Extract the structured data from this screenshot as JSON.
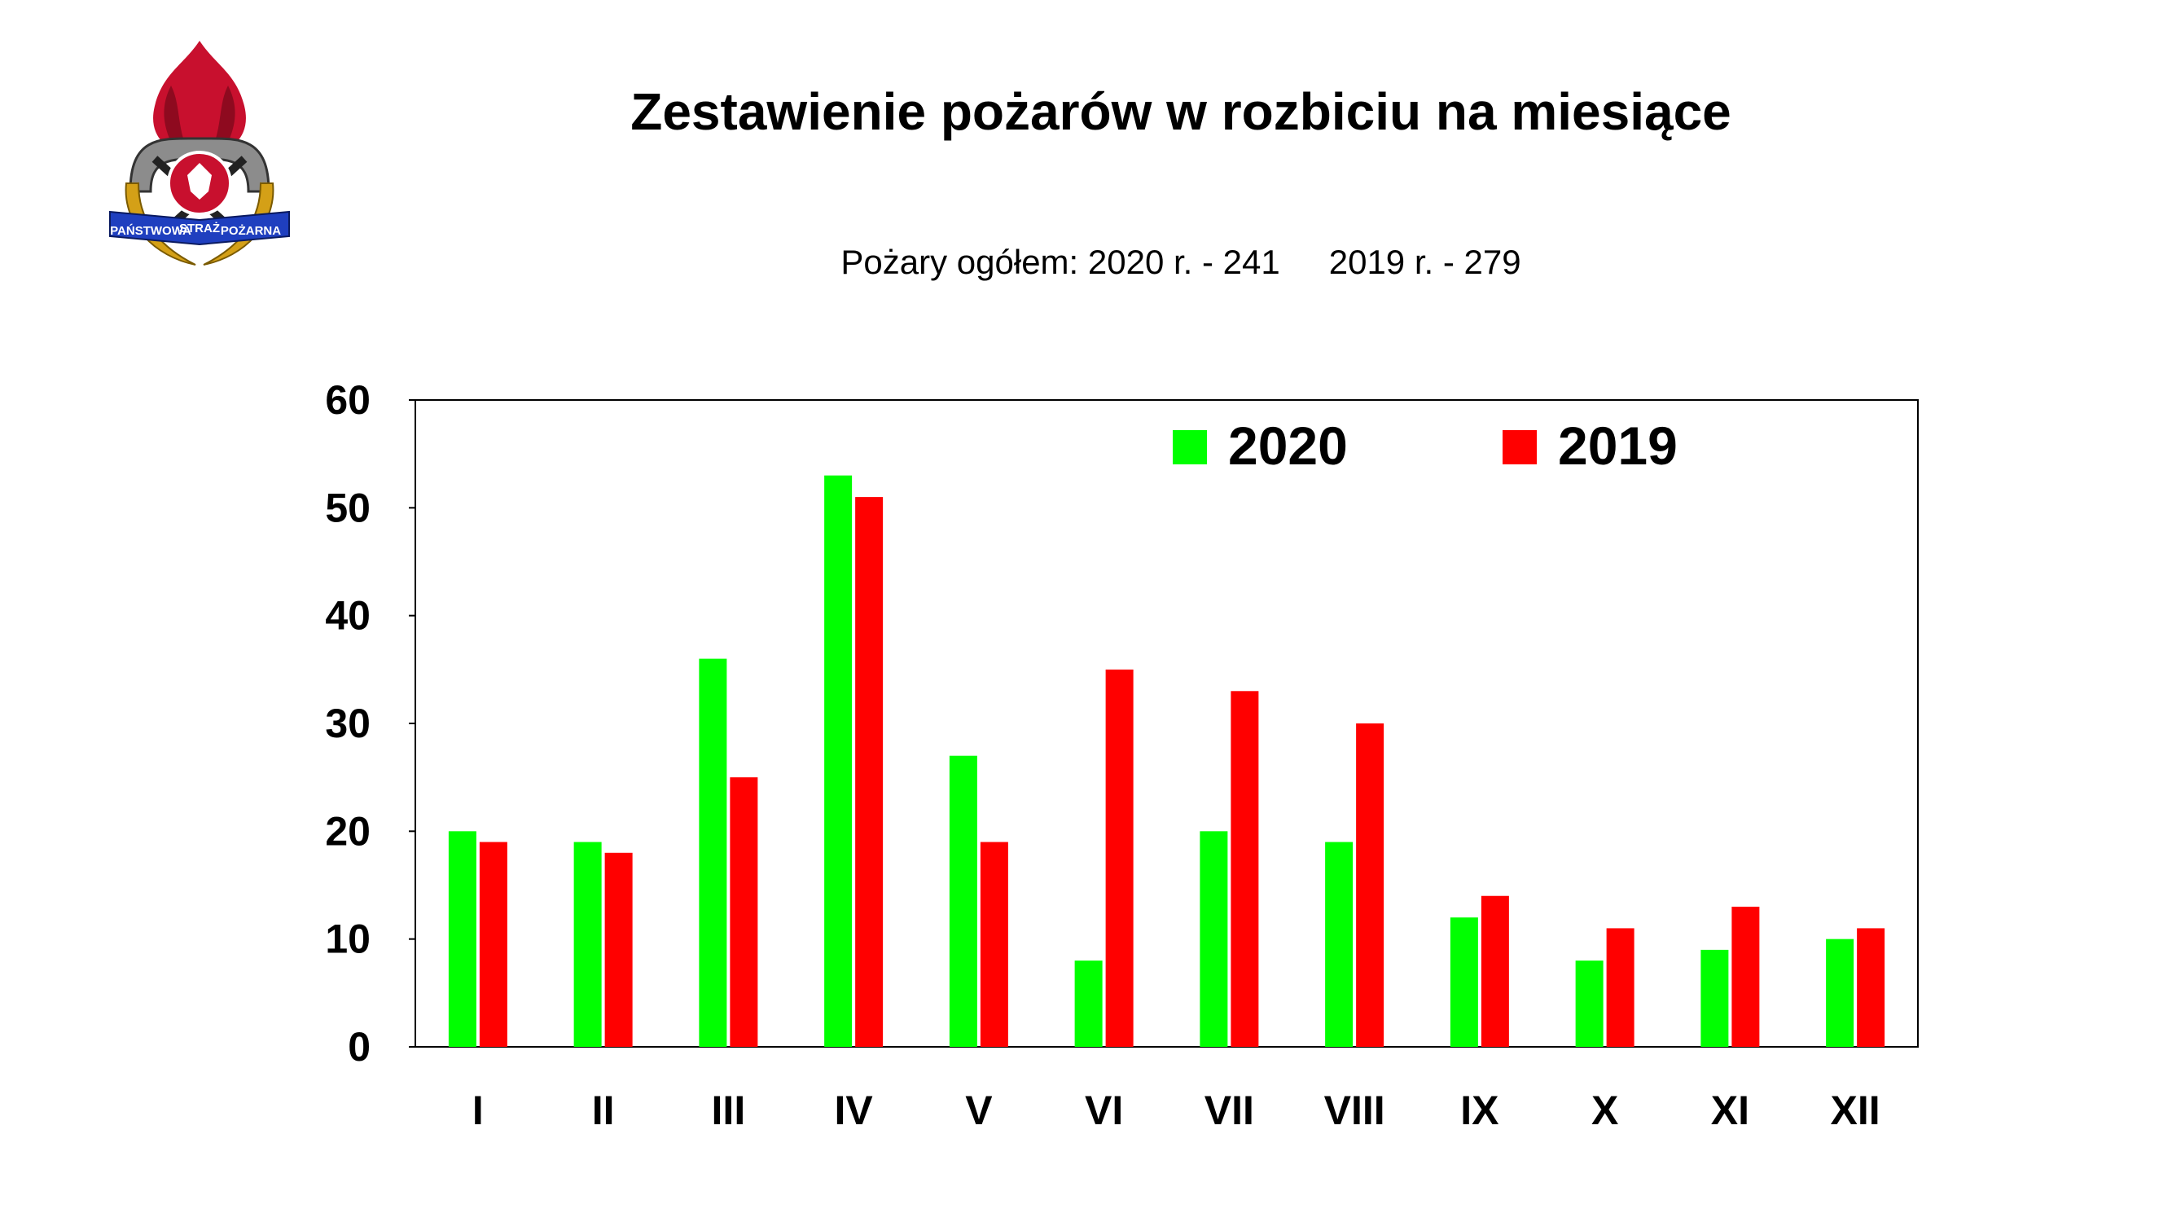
{
  "logo": {
    "band_text_left": "PAŃSTWOWA",
    "band_text_mid": "STRAŻ",
    "band_text_right": "POŻARNA",
    "colors": {
      "flame": "#c8102e",
      "gray": "#8c8c8c",
      "blue": "#1f3fbf",
      "gold": "#d4a017"
    }
  },
  "chart_data": {
    "type": "bar",
    "title": "Zestawienie pożarów w rozbiciu na miesiące",
    "subtitle_parts": [
      "Pożary ogółem: 2020 r. - 241",
      "2019 r. - 279"
    ],
    "categories": [
      "I",
      "II",
      "III",
      "IV",
      "V",
      "VI",
      "VII",
      "VIII",
      "IX",
      "X",
      "XI",
      "XII"
    ],
    "series": [
      {
        "name": "2020",
        "color": "#00ff00",
        "values": [
          20,
          19,
          36,
          53,
          27,
          8,
          20,
          19,
          12,
          8,
          9,
          10
        ]
      },
      {
        "name": "2019",
        "color": "#ff0000",
        "values": [
          19,
          18,
          25,
          51,
          19,
          35,
          33,
          30,
          14,
          11,
          13,
          11
        ]
      }
    ],
    "ylim": [
      0,
      60
    ],
    "yticks": [
      0,
      10,
      20,
      30,
      40,
      50,
      60
    ],
    "grid": false,
    "legend": "top-right",
    "xlabel": "",
    "ylabel": ""
  }
}
